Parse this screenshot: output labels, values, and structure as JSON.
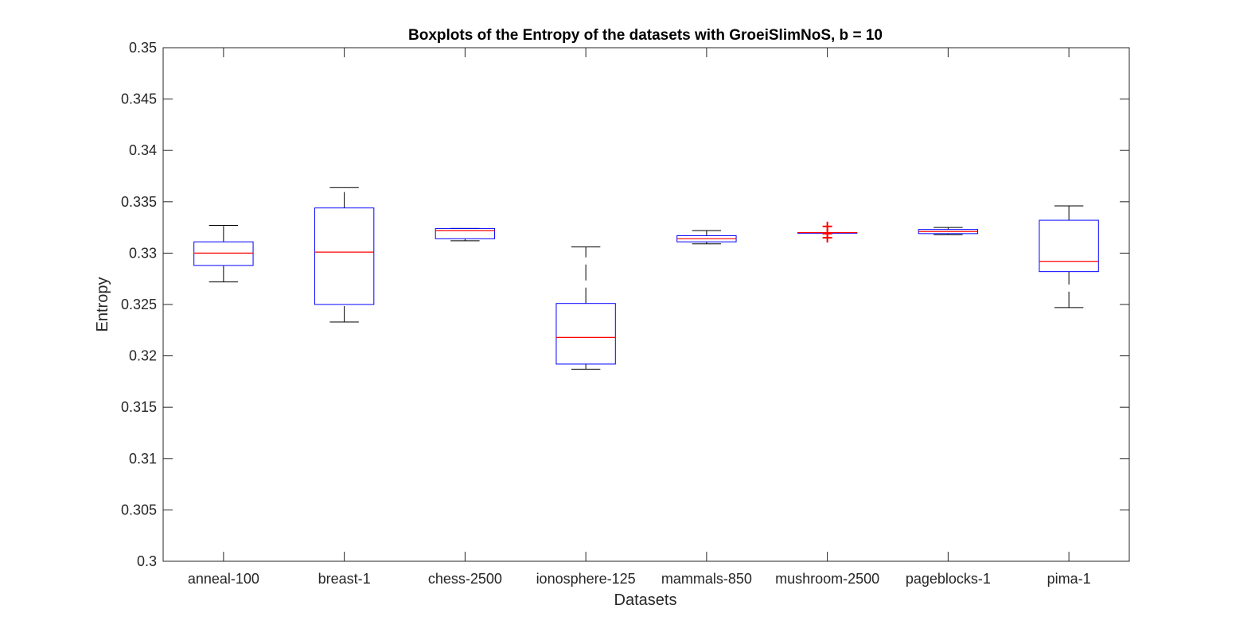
{
  "chart_data": {
    "type": "boxplot",
    "title": "Boxplots of the Entropy of the datasets with GroeiSlimNoS, b = 10",
    "xlabel": "Datasets",
    "ylabel": "Entropy",
    "ylim": [
      0.3,
      0.35
    ],
    "yticks": [
      0.3,
      0.305,
      0.31,
      0.315,
      0.32,
      0.325,
      0.33,
      0.335,
      0.34,
      0.345,
      0.35
    ],
    "ytick_labels": [
      "0.3",
      "0.305",
      "0.31",
      "0.315",
      "0.32",
      "0.325",
      "0.33",
      "0.335",
      "0.34",
      "0.345",
      "0.35"
    ],
    "categories": [
      "anneal-100",
      "breast-1",
      "chess-2500",
      "ionosphere-125",
      "mammals-850",
      "mushroom-2500",
      "pageblocks-1",
      "pima-1"
    ],
    "grid": false,
    "colors": {
      "box": "#0000ff",
      "median": "#ff0000",
      "whisker": "#000000",
      "outlier": "#ff0000",
      "axis": "#262626"
    },
    "boxes": [
      {
        "name": "anneal-100",
        "lower_whisker": 0.3272,
        "q1": 0.3288,
        "median": 0.33,
        "q3": 0.3311,
        "upper_whisker": 0.3327,
        "outliers": []
      },
      {
        "name": "breast-1",
        "lower_whisker": 0.3233,
        "q1": 0.325,
        "median": 0.3301,
        "q3": 0.3344,
        "upper_whisker": 0.3364,
        "outliers": []
      },
      {
        "name": "chess-2500",
        "lower_whisker": 0.3312,
        "q1": 0.3314,
        "median": 0.3322,
        "q3": 0.3324,
        "upper_whisker": 0.3324,
        "outliers": []
      },
      {
        "name": "ionosphere-125",
        "lower_whisker": 0.3187,
        "q1": 0.3192,
        "median": 0.3218,
        "q3": 0.3251,
        "upper_whisker": 0.3306,
        "outliers": []
      },
      {
        "name": "mammals-850",
        "lower_whisker": 0.3309,
        "q1": 0.3311,
        "median": 0.3314,
        "q3": 0.3317,
        "upper_whisker": 0.3322,
        "outliers": []
      },
      {
        "name": "mushroom-2500",
        "lower_whisker": 0.332,
        "q1": 0.332,
        "median": 0.332,
        "q3": 0.332,
        "upper_whisker": 0.332,
        "outliers": [
          0.3315,
          0.3319,
          0.3326
        ]
      },
      {
        "name": "pageblocks-1",
        "lower_whisker": 0.3318,
        "q1": 0.3319,
        "median": 0.3321,
        "q3": 0.3323,
        "upper_whisker": 0.3325,
        "outliers": []
      },
      {
        "name": "pima-1",
        "lower_whisker": 0.3247,
        "q1": 0.3282,
        "median": 0.3292,
        "q3": 0.3332,
        "upper_whisker": 0.3346,
        "outliers": []
      }
    ]
  }
}
